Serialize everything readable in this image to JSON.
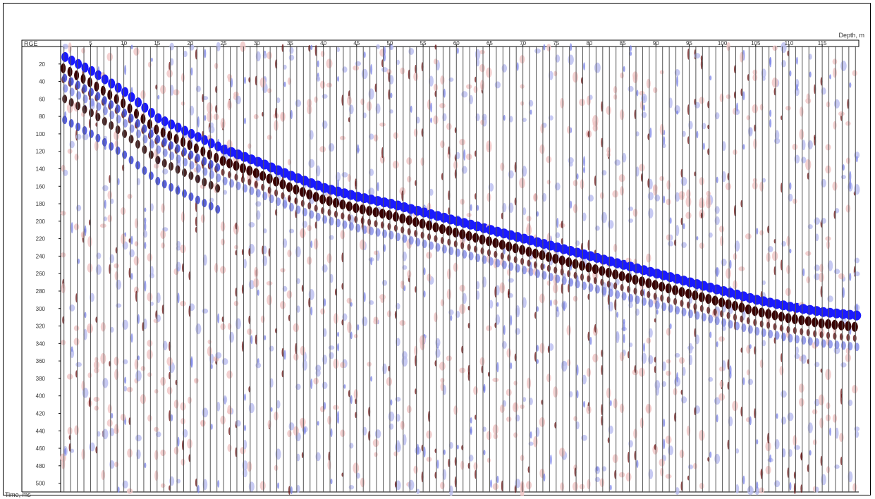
{
  "chart_data": {
    "type": "heatmap",
    "title": "",
    "xlabel": "Depth, m",
    "ylabel": "Time, ms",
    "corner_label": "RGE",
    "x_ticks": [
      5,
      10,
      15,
      20,
      25,
      30,
      35,
      40,
      45,
      50,
      55,
      60,
      65,
      70,
      75,
      80,
      85,
      90,
      95,
      100,
      105,
      110,
      115
    ],
    "y_ticks": [
      20,
      40,
      60,
      80,
      100,
      120,
      140,
      160,
      180,
      200,
      220,
      240,
      260,
      280,
      300,
      320,
      340,
      360,
      380,
      400,
      420,
      440,
      460,
      480,
      500
    ],
    "xlim": [
      1,
      120
    ],
    "ylim": [
      0,
      510
    ],
    "trace_count": 120,
    "first_arrival": {
      "depth": [
        1,
        5,
        10,
        15,
        20,
        25,
        30,
        35,
        40,
        45,
        50,
        55,
        60,
        65,
        70,
        75,
        80,
        85,
        90,
        95,
        100,
        105,
        110,
        115,
        120
      ],
      "time": [
        12,
        28,
        52,
        82,
        100,
        118,
        132,
        148,
        162,
        172,
        180,
        190,
        200,
        210,
        220,
        230,
        240,
        250,
        260,
        270,
        280,
        290,
        298,
        304,
        308
      ]
    },
    "colors": {
      "trough": "#1a1aff",
      "peak": "#3a0000",
      "weak_trough": "#b9bdf0",
      "weak_peak": "#f0c4c4",
      "trace_line": "#555555"
    },
    "grid": false
  }
}
